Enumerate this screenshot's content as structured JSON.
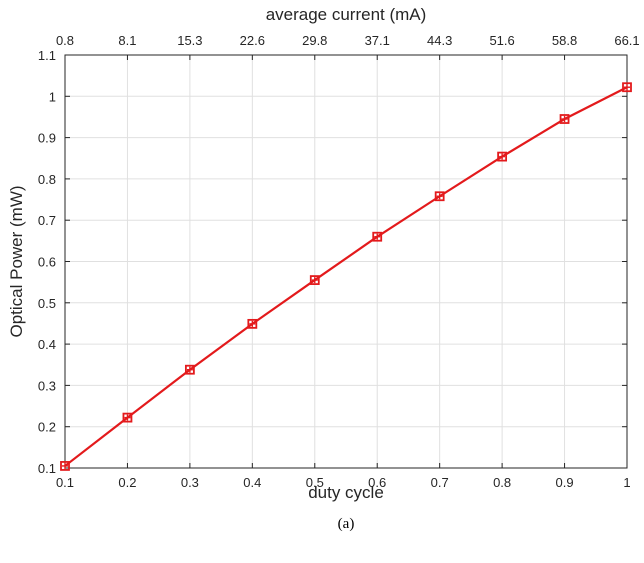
{
  "chart_data": {
    "type": "line",
    "xlabel": "duty cycle",
    "ylabel": "Optical Power (mW)",
    "x2label": "average current (mA)",
    "caption": "(a)",
    "xlim": [
      0.1,
      1.0
    ],
    "ylim": [
      0.1,
      1.1
    ],
    "x_ticks": [
      "0.1",
      "0.2",
      "0.3",
      "0.4",
      "0.5",
      "0.6",
      "0.7",
      "0.8",
      "0.9",
      "1"
    ],
    "y_ticks": [
      "0.1",
      "0.2",
      "0.3",
      "0.4",
      "0.5",
      "0.6",
      "0.7",
      "0.8",
      "0.9",
      "1",
      "1.1"
    ],
    "x2_ticks": [
      "0.8",
      "8.1",
      "15.3",
      "22.6",
      "29.8",
      "37.1",
      "44.3",
      "51.6",
      "58.8",
      "66.1"
    ],
    "grid": true,
    "series": [
      {
        "x": [
          0.1,
          0.2,
          0.3,
          0.4,
          0.5,
          0.6,
          0.7,
          0.8,
          0.9,
          1.0
        ],
        "y": [
          0.105,
          0.222,
          0.338,
          0.449,
          0.555,
          0.66,
          0.758,
          0.854,
          0.945,
          1.022
        ],
        "color": "#e31a1c",
        "marker": "square-plus"
      }
    ]
  }
}
